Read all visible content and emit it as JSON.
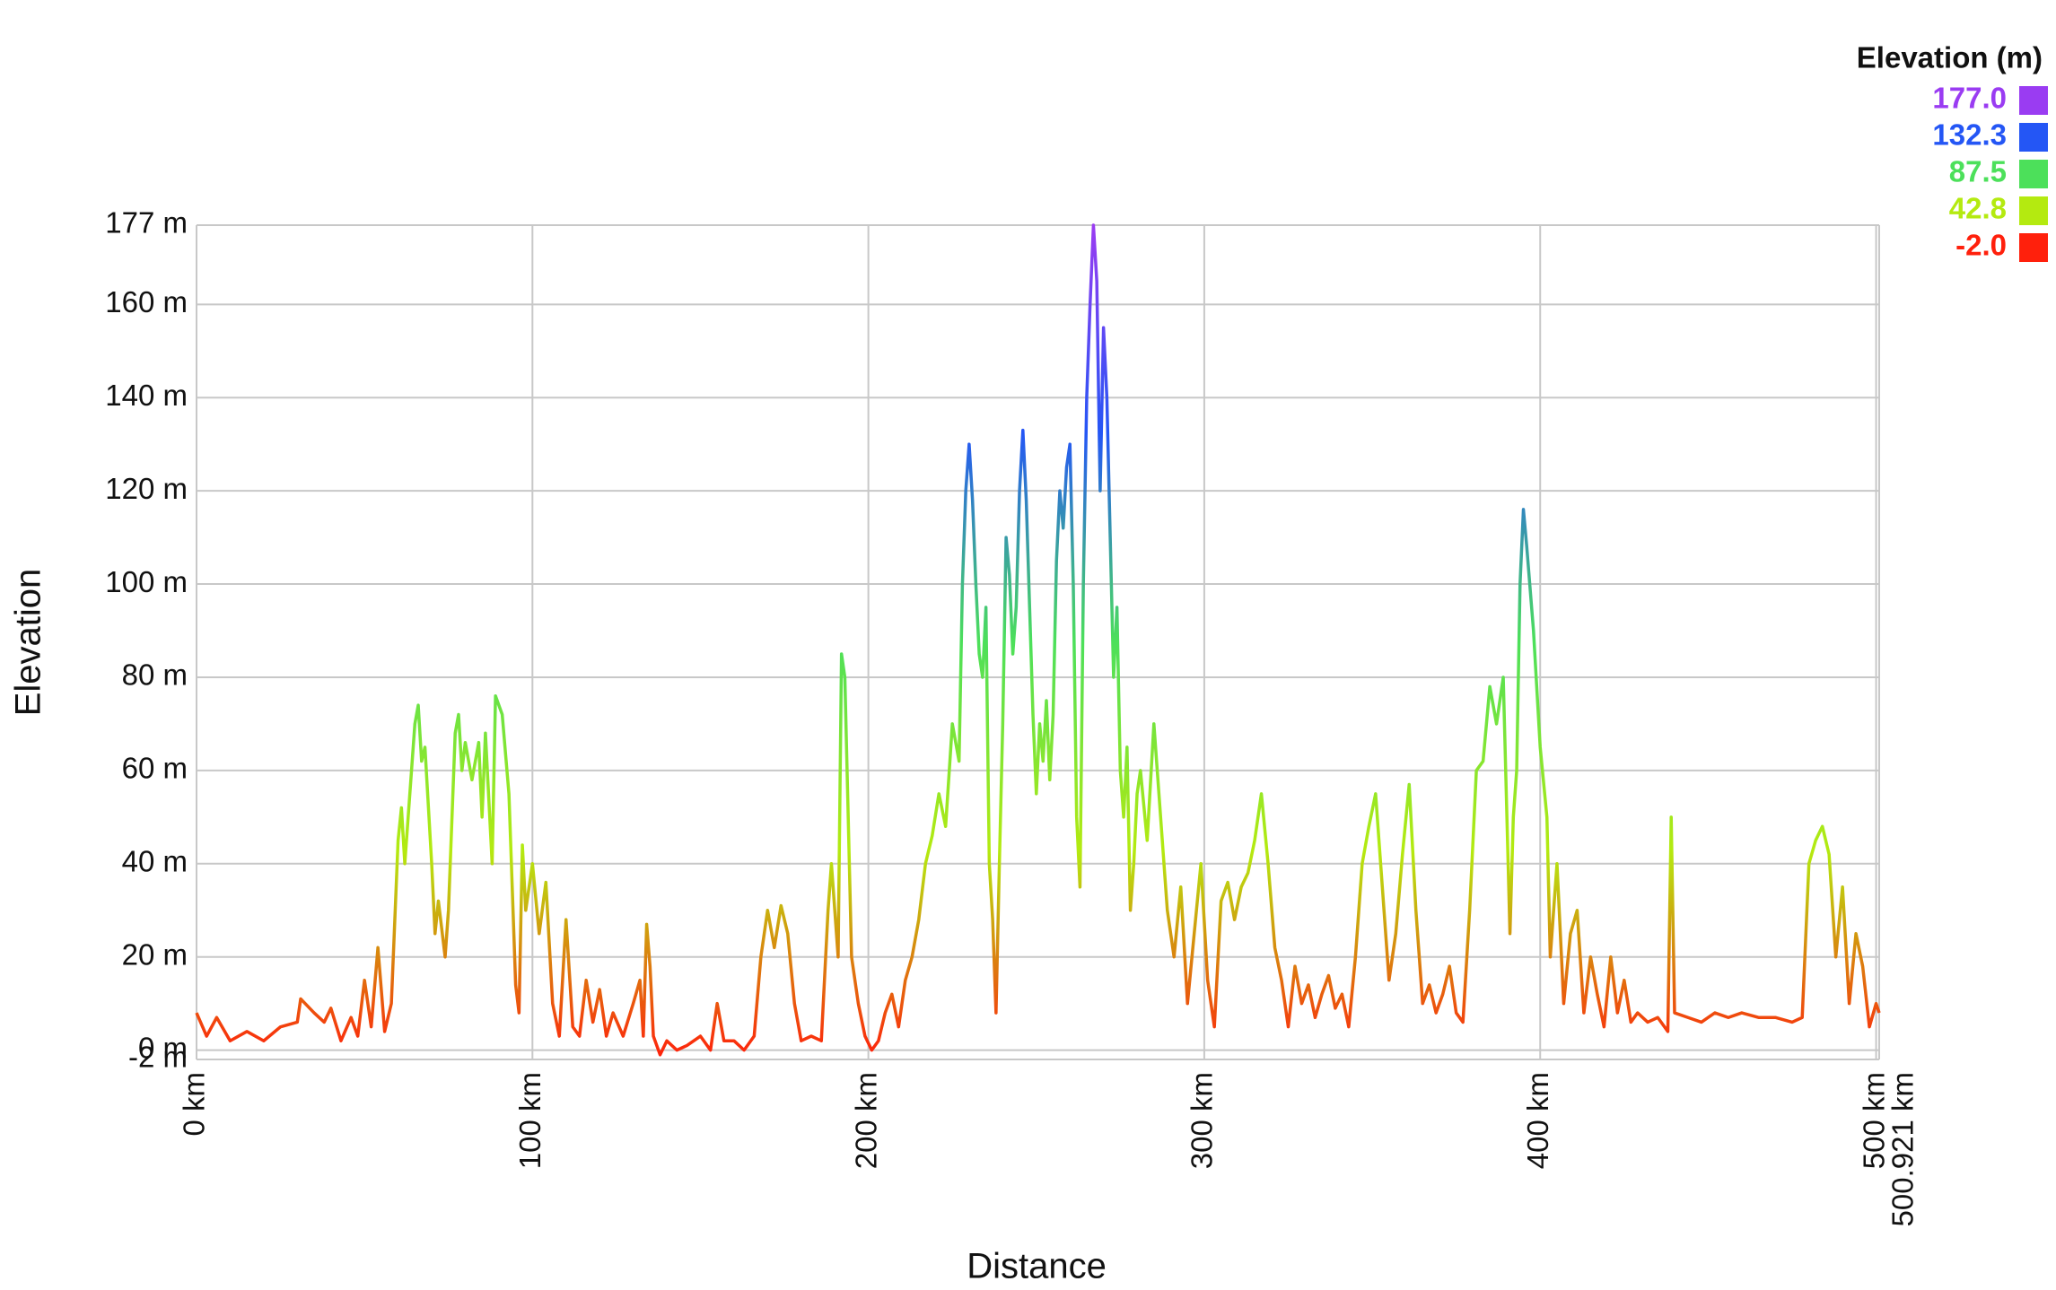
{
  "chart_data": {
    "type": "line",
    "xlabel": "Distance",
    "ylabel": "Elevation",
    "xlim": [
      0,
      500.921
    ],
    "ylim": [
      -2,
      177
    ],
    "xticks": [
      {
        "value": 0,
        "label": "0 km"
      },
      {
        "value": 100,
        "label": "100 km"
      },
      {
        "value": 200,
        "label": "200 km"
      },
      {
        "value": 300,
        "label": "300 km"
      },
      {
        "value": 400,
        "label": "400 km"
      },
      {
        "value": 500,
        "label": "500 km"
      },
      {
        "value": 500.921,
        "label": "500.921 km"
      }
    ],
    "yticks": [
      {
        "value": -2,
        "label": "-2 m"
      },
      {
        "value": 0,
        "label": "0 m"
      },
      {
        "value": 20,
        "label": "20 m"
      },
      {
        "value": 40,
        "label": "40 m"
      },
      {
        "value": 60,
        "label": "60 m"
      },
      {
        "value": 80,
        "label": "80 m"
      },
      {
        "value": 100,
        "label": "100 m"
      },
      {
        "value": 120,
        "label": "120 m"
      },
      {
        "value": 140,
        "label": "140 m"
      },
      {
        "value": 160,
        "label": "160 m"
      },
      {
        "value": 177,
        "label": "177 m"
      }
    ],
    "grid": true,
    "legend": {
      "title": "Elevation (m)",
      "entries": [
        {
          "value": 177,
          "label": "177.0",
          "color": "#9a3cf2"
        },
        {
          "value": 132.3,
          "label": "132.3",
          "color": "#2456f5"
        },
        {
          "value": 87.5,
          "label": "87.5",
          "color": "#4ce05a"
        },
        {
          "value": 42.8,
          "label": "42.8",
          "color": "#b4ea10"
        },
        {
          "value": -2,
          "label": "-2.0",
          "color": "#ff200c"
        }
      ]
    },
    "x": [
      0,
      3,
      6,
      10,
      15,
      20,
      25,
      30,
      31,
      35,
      38,
      40,
      43,
      46,
      48,
      50,
      52,
      54,
      56,
      58,
      60,
      61,
      62,
      64,
      65,
      66,
      67,
      68,
      70,
      71,
      72,
      74,
      75,
      77,
      78,
      79,
      80,
      82,
      84,
      85,
      86,
      88,
      89,
      91,
      93,
      95,
      96,
      97,
      98,
      100,
      102,
      104,
      106,
      108,
      110,
      112,
      114,
      116,
      118,
      120,
      122,
      124,
      127,
      130,
      132,
      133,
      134,
      135,
      136,
      138,
      140,
      143,
      146,
      150,
      153,
      155,
      157,
      160,
      163,
      166,
      168,
      170,
      172,
      174,
      176,
      178,
      180,
      183,
      186,
      188,
      189,
      191,
      192,
      193,
      195,
      197,
      199,
      201,
      203,
      205,
      207,
      209,
      211,
      213,
      215,
      217,
      219,
      221,
      223,
      225,
      227,
      228,
      229,
      230,
      231,
      232,
      233,
      234,
      235,
      236,
      237,
      238,
      239,
      240,
      241,
      242,
      243,
      244,
      245,
      246,
      247,
      248,
      249,
      250,
      251,
      252,
      253,
      254,
      255,
      256,
      257,
      258,
      259,
      260,
      261,
      262,
      263,
      264,
      265,
      266,
      267,
      268,
      269,
      270,
      271,
      272,
      273,
      274,
      275,
      276,
      277,
      278,
      279,
      280,
      281,
      283,
      285,
      287,
      289,
      291,
      293,
      295,
      297,
      299,
      301,
      303,
      305,
      307,
      309,
      311,
      313,
      315,
      317,
      319,
      321,
      323,
      325,
      327,
      329,
      331,
      333,
      335,
      337,
      339,
      341,
      343,
      345,
      347,
      349,
      351,
      353,
      355,
      357,
      359,
      361,
      363,
      365,
      367,
      369,
      371,
      373,
      375,
      377,
      379,
      381,
      383,
      385,
      387,
      389,
      391,
      392,
      393,
      394,
      395,
      396,
      398,
      400,
      402,
      403,
      405,
      407,
      409,
      411,
      413,
      415,
      417,
      419,
      421,
      423,
      425,
      427,
      429,
      432,
      435,
      438,
      439,
      440,
      444,
      448,
      452,
      456,
      460,
      465,
      470,
      475,
      478,
      480,
      482,
      484,
      486,
      488,
      490,
      492,
      494,
      496,
      498,
      500,
      500.921
    ],
    "values": [
      8,
      3,
      7,
      2,
      4,
      2,
      5,
      6,
      11,
      8,
      6,
      9,
      2,
      7,
      3,
      15,
      5,
      22,
      4,
      10,
      45,
      52,
      40,
      60,
      70,
      74,
      62,
      65,
      40,
      25,
      32,
      20,
      30,
      68,
      72,
      60,
      66,
      58,
      66,
      50,
      68,
      40,
      76,
      72,
      55,
      14,
      8,
      44,
      30,
      40,
      25,
      36,
      10,
      3,
      28,
      5,
      3,
      15,
      6,
      13,
      3,
      8,
      3,
      10,
      15,
      3,
      27,
      18,
      3,
      -1,
      2,
      0,
      1,
      3,
      0,
      10,
      2,
      2,
      0,
      3,
      20,
      30,
      22,
      31,
      25,
      10,
      2,
      3,
      2,
      30,
      40,
      20,
      85,
      80,
      20,
      10,
      3,
      0,
      2,
      8,
      12,
      5,
      15,
      20,
      28,
      40,
      46,
      55,
      48,
      70,
      62,
      100,
      120,
      130,
      118,
      100,
      85,
      80,
      95,
      40,
      28,
      8,
      40,
      70,
      110,
      102,
      85,
      95,
      120,
      133,
      118,
      95,
      72,
      55,
      70,
      62,
      75,
      58,
      72,
      105,
      120,
      112,
      125,
      130,
      100,
      50,
      35,
      100,
      140,
      160,
      177,
      165,
      120,
      155,
      140,
      110,
      80,
      95,
      60,
      50,
      65,
      30,
      40,
      55,
      60,
      45,
      70,
      50,
      30,
      20,
      35,
      10,
      25,
      40,
      15,
      5,
      32,
      36,
      28,
      35,
      38,
      45,
      55,
      40,
      22,
      15,
      5,
      18,
      10,
      14,
      7,
      12,
      16,
      9,
      12,
      5,
      20,
      40,
      48,
      55,
      35,
      15,
      25,
      42,
      57,
      30,
      10,
      14,
      8,
      12,
      18,
      8,
      6,
      30,
      60,
      62,
      78,
      70,
      80,
      25,
      50,
      60,
      100,
      116,
      108,
      90,
      65,
      50,
      20,
      40,
      10,
      25,
      30,
      8,
      20,
      12,
      5,
      20,
      8,
      15,
      6,
      8,
      6,
      7,
      4,
      50,
      8,
      7,
      6,
      8,
      7,
      8,
      7,
      7,
      6,
      7,
      40,
      45,
      48,
      42,
      20,
      35,
      10,
      25,
      18,
      5,
      10,
      8
    ]
  }
}
